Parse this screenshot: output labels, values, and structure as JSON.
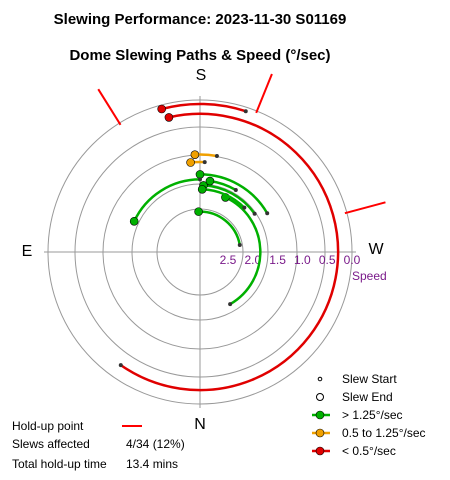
{
  "chart_data": {
    "type": "polar-paths",
    "title": "Slewing Performance: 2023-11-30 S01169",
    "subtitle": "Dome Slewing Paths & Speed (°/sec)",
    "compass": {
      "top": "S",
      "bottom": "N",
      "left": "E",
      "right": "W"
    },
    "radial_label": "Speed",
    "radial_ticks": [
      {
        "label": "0.0",
        "value": 0.0
      },
      {
        "label": "0.5",
        "value": 0.5
      },
      {
        "label": "1.0",
        "value": 1.0
      },
      {
        "label": "1.5",
        "value": 1.5
      },
      {
        "label": "2.0",
        "value": 2.0
      },
      {
        "label": "2.5",
        "value": 2.5
      }
    ],
    "speed_range": [
      0,
      2.5
    ],
    "speed_axis": "inward (0.0 at outer ring, 2.5 near centre)",
    "angle_convention": "S at top, W at right, N at bottom, E at left",
    "colors": {
      "fast": "#00b000",
      "medium": "#f0a000",
      "slow": "#e00000",
      "holdup": "#ff0000",
      "grid": "#999999",
      "speed": "#7a1a8a"
    },
    "paths": [
      {
        "category": "slow",
        "from_az": -15,
        "to_az": 18,
        "speed": 0.08
      },
      {
        "category": "slow",
        "from_az": -13,
        "to_az": 215,
        "speed": 0.28
      },
      {
        "category": "medium",
        "from_az": -3,
        "to_az": 10,
        "speed": 1.1
      },
      {
        "category": "medium",
        "from_az": -6,
        "to_az": 3,
        "speed": 1.25
      },
      {
        "category": "fast",
        "from_az": -2,
        "to_az": 80,
        "speed": 2.25
      },
      {
        "category": "fast",
        "from_az": 25,
        "to_az": 150,
        "speed": 1.85
      },
      {
        "category": "fast",
        "from_az": 3,
        "to_az": 55,
        "speed": 1.72
      },
      {
        "category": "fast",
        "from_az": 8,
        "to_az": 30,
        "speed": 1.62
      },
      {
        "category": "fast",
        "from_az": 0,
        "to_az": 60,
        "speed": 1.5
      },
      {
        "category": "fast",
        "from_az": -65,
        "to_az": 0,
        "speed": 1.6
      },
      {
        "category": "fast",
        "from_az": 2,
        "to_az": 45,
        "speed": 1.8
      }
    ],
    "holdups": [
      {
        "az": -32,
        "note": "hold-up point"
      },
      {
        "az": 75,
        "note": "hold-up point"
      },
      {
        "az": 22,
        "note": "hold-up point"
      }
    ],
    "legend": {
      "placement": "bottom-right",
      "items": [
        {
          "label": "Slew Start",
          "kind": "start"
        },
        {
          "label": "Slew End",
          "kind": "end"
        },
        {
          "label": "> 1.25°/sec",
          "kind": "fast"
        },
        {
          "label": "0.5 to 1.25°/sec",
          "kind": "medium"
        },
        {
          "label": "< 0.5°/sec",
          "kind": "slow"
        }
      ]
    },
    "summary": {
      "holdup_label": "Hold-up point",
      "slews_affected_label": "Slews affected",
      "slews_affected_value": "4/34 (12%)",
      "total_holdup_label": "Total hold-up time",
      "total_holdup_value": "13.4 mins"
    }
  }
}
